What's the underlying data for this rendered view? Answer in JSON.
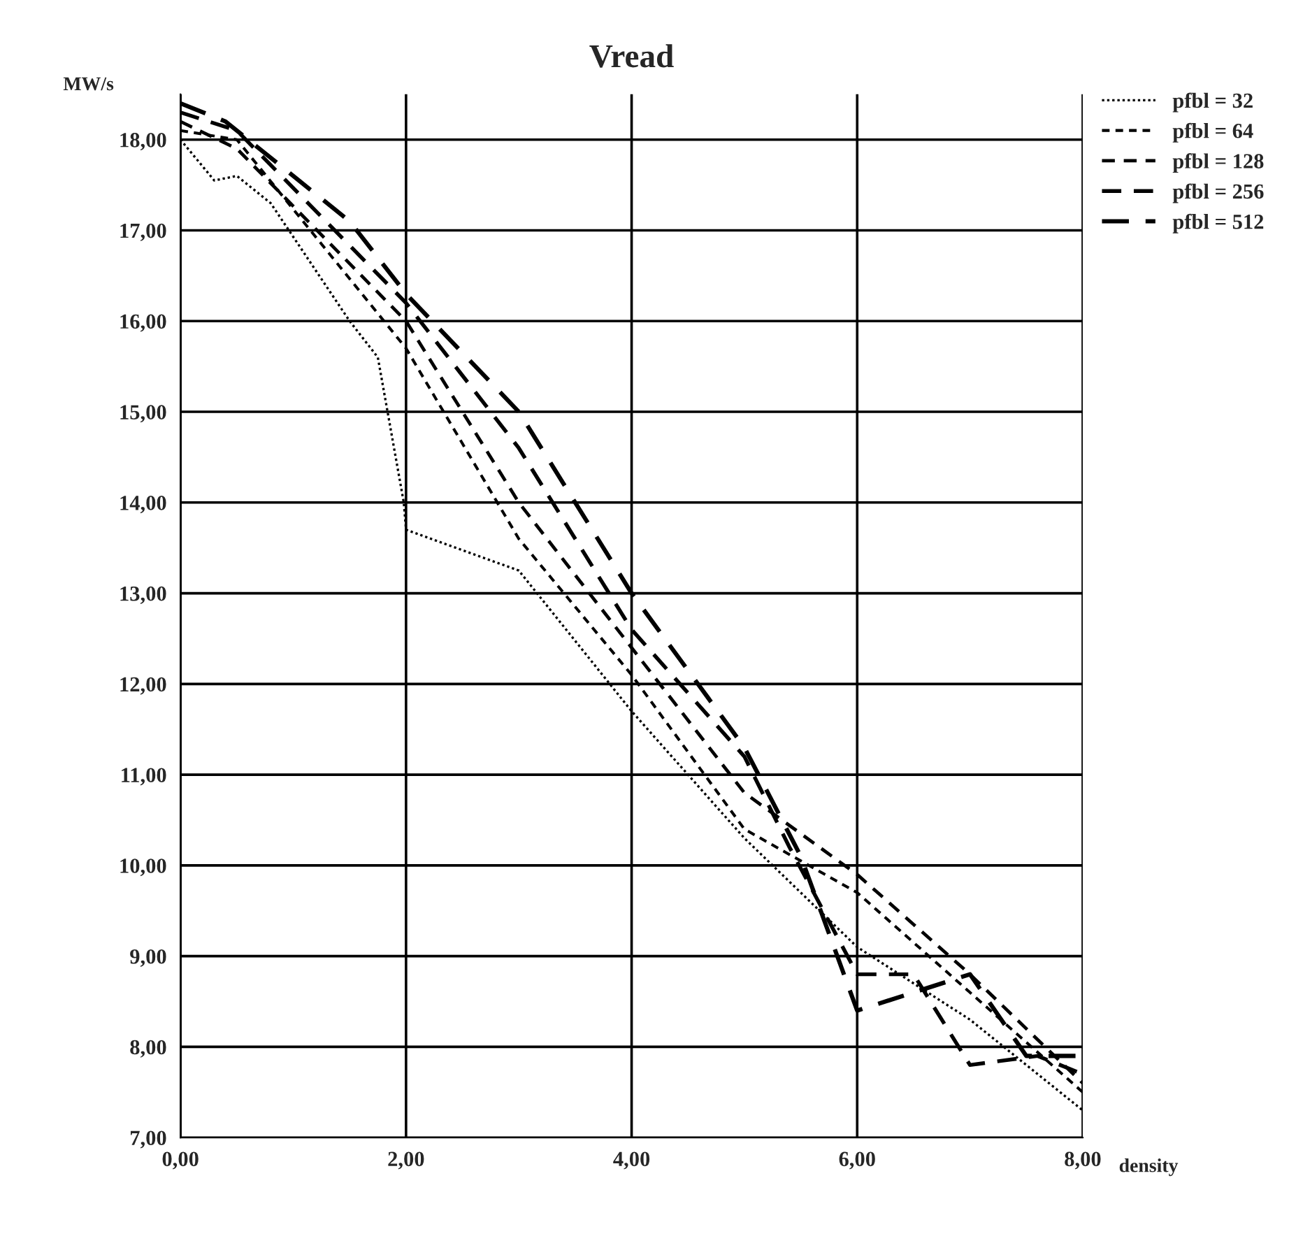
{
  "chart_data": {
    "type": "line",
    "title": "Vread",
    "xlabel": "density",
    "ylabel": "MW/s",
    "xlim": [
      0,
      8
    ],
    "ylim": [
      7,
      18.5
    ],
    "xticks": [
      {
        "value": 0,
        "label": "0,00"
      },
      {
        "value": 2,
        "label": "2,00"
      },
      {
        "value": 4,
        "label": "4,00"
      },
      {
        "value": 6,
        "label": "6,00"
      },
      {
        "value": 8,
        "label": "8,00"
      }
    ],
    "yticks": [
      {
        "value": 7,
        "label": "7,00"
      },
      {
        "value": 8,
        "label": "8,00"
      },
      {
        "value": 9,
        "label": "9,00"
      },
      {
        "value": 10,
        "label": "10,00"
      },
      {
        "value": 11,
        "label": "11,00"
      },
      {
        "value": 12,
        "label": "12,00"
      },
      {
        "value": 13,
        "label": "13,00"
      },
      {
        "value": 14,
        "label": "14,00"
      },
      {
        "value": 15,
        "label": "15,00"
      },
      {
        "value": 16,
        "label": "16,00"
      },
      {
        "value": 17,
        "label": "17,00"
      },
      {
        "value": 18,
        "label": "18,00"
      }
    ],
    "grid": true,
    "legend": "top right",
    "marker": "none",
    "series": [
      {
        "name": "pfbl = 32",
        "color": "#000000",
        "line_style": "dotted",
        "x": [
          0,
          0.3,
          0.5,
          0.8,
          1.5,
          1.75,
          1.98,
          2.0,
          3.0,
          4.0,
          5.0,
          6.0,
          7.0,
          8.0
        ],
        "values": [
          18.0,
          17.55,
          17.6,
          17.3,
          16.0,
          15.6,
          14.0,
          13.7,
          13.25,
          11.7,
          10.3,
          9.1,
          8.3,
          7.3
        ]
      },
      {
        "name": "pfbl = 64",
        "color": "#000000",
        "line_style": "dashed",
        "x": [
          0,
          0.5,
          2,
          3,
          4,
          5,
          6,
          7,
          8
        ],
        "values": [
          18.1,
          18.0,
          15.7,
          13.6,
          12.1,
          10.4,
          9.7,
          8.6,
          7.5
        ]
      },
      {
        "name": "pfbl = 128",
        "color": "#000000",
        "line_style": "dashed",
        "x": [
          0,
          0.5,
          2,
          3,
          4,
          5,
          6,
          7,
          8
        ],
        "values": [
          18.2,
          17.9,
          16.0,
          14.0,
          12.4,
          10.8,
          9.9,
          8.8,
          7.6
        ]
      },
      {
        "name": "pfbl = 256",
        "color": "#000000",
        "line_style": "dashed",
        "x": [
          0,
          0.5,
          2,
          3,
          4,
          5,
          5.4,
          6,
          6.5,
          7,
          7.6,
          8
        ],
        "values": [
          18.3,
          18.1,
          16.2,
          14.6,
          12.6,
          11.2,
          10.2,
          8.8,
          8.8,
          7.8,
          7.9,
          7.7
        ]
      },
      {
        "name": "pfbl = 512",
        "color": "#000000",
        "line_style": "dashed",
        "x": [
          0,
          0.4,
          1.5,
          2,
          3,
          4,
          5,
          5.5,
          6,
          6.5,
          7,
          7.5,
          8
        ],
        "values": [
          18.4,
          18.2,
          17.1,
          16.3,
          15.0,
          13.0,
          11.3,
          10.1,
          8.4,
          8.6,
          8.8,
          7.9,
          7.9
        ]
      }
    ]
  }
}
